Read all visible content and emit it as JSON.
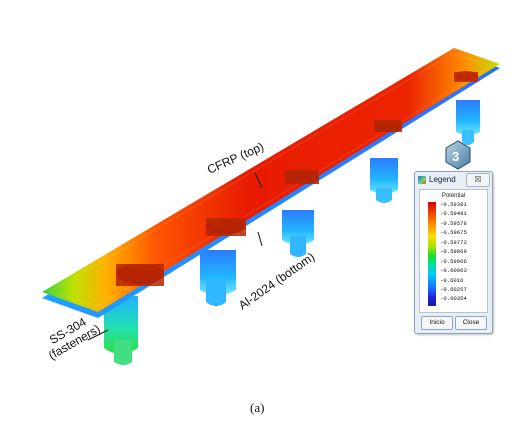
{
  "labels": {
    "cfrp": "CFRP (top)",
    "al": "Al-2024 (bottom)",
    "ss_line1": "SS-304",
    "ss_line2": "(fasteners)"
  },
  "caption": "(a)",
  "legend": {
    "title": "Legend",
    "close_glyph": "☒",
    "heading": "Potential",
    "values": [
      "-0.59381",
      "-0.59481",
      "-0.59578",
      "-0.59675",
      "-0.59772",
      "-0.59869",
      "-0.59966",
      "-0.60063",
      "-0.6016",
      "-0.60257",
      "-0.60354"
    ],
    "buttons": {
      "start": "Inicio",
      "close": "Close"
    }
  },
  "colors": {
    "hot": "#e02000",
    "warm": "#ffb000",
    "mid": "#30e040",
    "cool": "#20c8ff",
    "cold": "#2040ff"
  }
}
